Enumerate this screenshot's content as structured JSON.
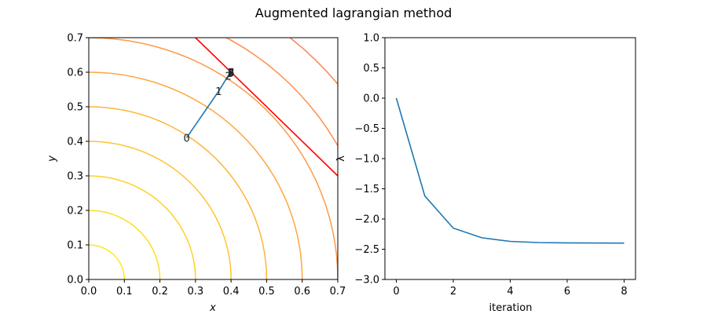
{
  "figure": {
    "title": "Augmented lagrangian method"
  },
  "chart_data": [
    {
      "type": "contour",
      "xlabel": "x",
      "ylabel": "y",
      "xlim": [
        0,
        0.7
      ],
      "ylim": [
        0,
        0.7
      ],
      "xticks": [
        "0.0",
        "0.1",
        "0.2",
        "0.3",
        "0.4",
        "0.5",
        "0.6",
        "0.7"
      ],
      "yticks": [
        "0.0",
        "0.1",
        "0.2",
        "0.3",
        "0.4",
        "0.5",
        "0.6",
        "0.7"
      ],
      "contour_levels": [
        0.1,
        0.2,
        0.3,
        0.4,
        0.5,
        0.6,
        0.7,
        0.8,
        0.9,
        1.0,
        1.1,
        1.2,
        1.3,
        1.4
      ],
      "contour_colors": [
        "#ffe81e",
        "#ffdd24",
        "#ffd02a",
        "#ffc330",
        "#ffb537",
        "#ffa73e",
        "#ff9a45",
        "#ff8d4c",
        "#ff8054",
        "#ff735b",
        "#ff6662",
        "#ff5a6a",
        "#ff4e71",
        "#ff4278"
      ],
      "constraint_line": {
        "x": [
          0.3,
          0.7
        ],
        "y": [
          0.7,
          0.3
        ],
        "color": "#ff0000"
      },
      "path": {
        "color": "#1f77b4",
        "points": [
          {
            "label": "0",
            "x": 0.275,
            "y": 0.41
          },
          {
            "label": "1",
            "x": 0.365,
            "y": 0.545
          },
          {
            "label": "2",
            "x": 0.392,
            "y": 0.59
          },
          {
            "label": "3",
            "x": 0.398,
            "y": 0.598
          },
          {
            "label": "4",
            "x": 0.4,
            "y": 0.6
          },
          {
            "label": "5",
            "x": 0.4,
            "y": 0.6
          },
          {
            "label": "6",
            "x": 0.4,
            "y": 0.6
          },
          {
            "label": "7",
            "x": 0.4,
            "y": 0.6
          },
          {
            "label": "8",
            "x": 0.4,
            "y": 0.6
          }
        ]
      }
    },
    {
      "type": "line",
      "xlabel": "iteration",
      "ylabel": "λ",
      "xlim": [
        -0.4,
        8.4
      ],
      "ylim": [
        -3.0,
        1.0
      ],
      "xticks": [
        "0",
        "2",
        "4",
        "6",
        "8"
      ],
      "yticks": [
        "1.0",
        "0.5",
        "0.0",
        "−0.5",
        "−1.0",
        "−1.5",
        "−2.0",
        "−2.5",
        "−3.0"
      ],
      "series": [
        {
          "color": "#1f77b4",
          "x": [
            0,
            1,
            2,
            3,
            4,
            5,
            6,
            7,
            8
          ],
          "values": [
            0.0,
            -1.62,
            -2.15,
            -2.31,
            -2.37,
            -2.39,
            -2.395,
            -2.398,
            -2.399
          ]
        }
      ]
    }
  ]
}
